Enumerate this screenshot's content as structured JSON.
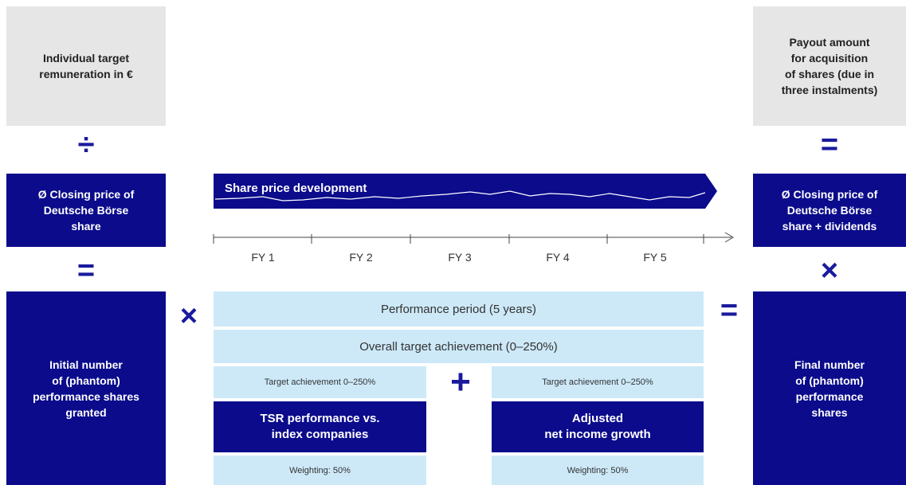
{
  "left": {
    "top_box": [
      "Individual target",
      "remuneration in €"
    ],
    "operator_1": "÷",
    "middle_box": [
      "Ø Closing price of",
      "Deutsche Börse",
      "share"
    ],
    "operator_2": "=",
    "bottom_box": [
      "Initial number",
      "of (phantom)",
      "performance shares",
      "granted"
    ]
  },
  "right": {
    "top_box": [
      "Payout amount",
      "for acquisition",
      "of shares (due in",
      "three instalments)"
    ],
    "operator_1": "=",
    "middle_box": [
      "Ø Closing price of",
      "Deutsche Börse",
      "share + dividends"
    ],
    "operator_2": "×",
    "bottom_box": [
      "Final number",
      "of (phantom)",
      "performance",
      "shares"
    ]
  },
  "center": {
    "banner": "Share price development",
    "timeline": [
      "FY 1",
      "FY 2",
      "FY 3",
      "FY 4",
      "FY 5"
    ],
    "operator_left": "×",
    "operator_right": "=",
    "period": "Performance period (5 years)",
    "overall": "Overall target achievement (0–250%)",
    "plus": "+",
    "components": [
      {
        "achievement": "Target achievement 0–250%",
        "name": [
          "TSR performance vs.",
          "index companies"
        ],
        "weighting": "Weighting: 50%"
      },
      {
        "achievement": "Target achievement 0–250%",
        "name": [
          "Adjusted",
          "net income growth"
        ],
        "weighting": "Weighting: 50%"
      }
    ]
  }
}
